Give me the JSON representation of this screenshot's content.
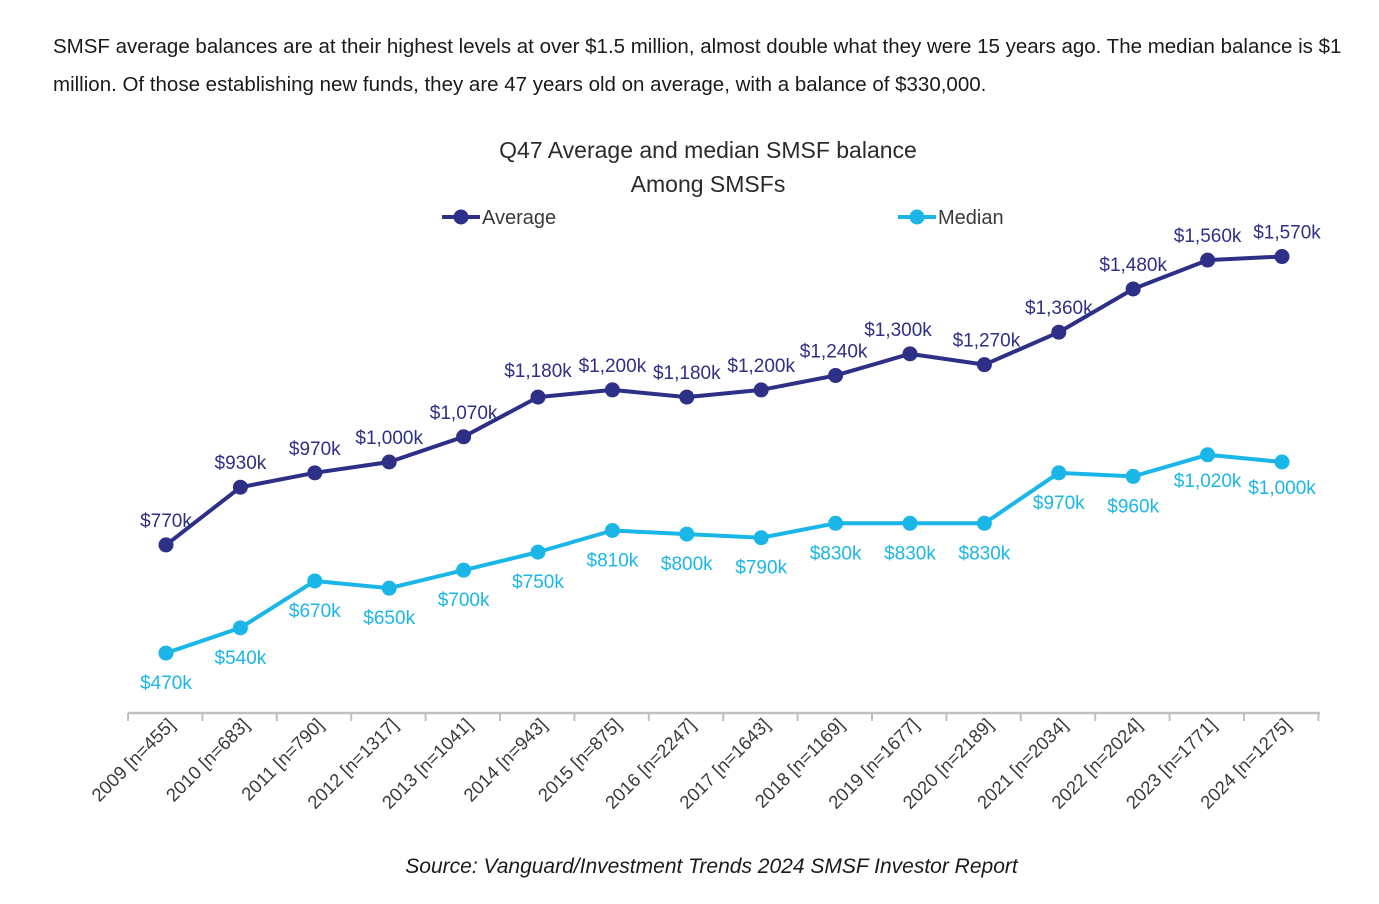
{
  "intro_text": "SMSF average balances are at their highest levels at over $1.5 million, almost double what they were 15 years ago. The median balance is $1 million. Of those establishing new funds, they are 47 years old on average, with a balance of $330,000.",
  "source": "Source: Vanguard/Investment Trends 2024 SMSF Investor Report",
  "colors": {
    "average": "#2e2f86",
    "median": "#1bb6e8",
    "axis": "#bfbfbf",
    "text": "#3a3a3a"
  },
  "chart_data": {
    "type": "line",
    "title": "Q47 Average and median SMSF balance",
    "subtitle": "Among SMSFs",
    "xlabel": "",
    "ylabel": "",
    "ylim": [
      300,
      1700
    ],
    "unit": "$k",
    "grid": false,
    "legend": "top",
    "categories": [
      "2009 [n=455]",
      "2010 [n=683]",
      "2011 [n=790]",
      "2012 [n=1317]",
      "2013 [n=1041]",
      "2014 [n=943]",
      "2015 [n=875]",
      "2016 [n=2247]",
      "2017 [n=1643]",
      "2018 [n=1169]",
      "2019 [n=1677]",
      "2020 [n=2189]",
      "2021 [n=2034]",
      "2022 [n=2024]",
      "2023 [n=1771]",
      "2024 [n=1275]"
    ],
    "series": [
      {
        "name": "Average",
        "values": [
          770,
          930,
          970,
          1000,
          1070,
          1180,
          1200,
          1180,
          1200,
          1240,
          1300,
          1270,
          1360,
          1480,
          1560,
          1570
        ],
        "labels": [
          "$770k",
          "$930k",
          "$970k",
          "$1,000k",
          "$1,070k",
          "$1,180k",
          "$1,200k",
          "$1,180k",
          "$1,200k",
          "$1,240k",
          "$1,300k",
          "$1,270k",
          "$1,360k",
          "$1,480k",
          "$1,560k",
          "$1,570k"
        ]
      },
      {
        "name": "Median",
        "values": [
          470,
          540,
          670,
          650,
          700,
          750,
          810,
          800,
          790,
          830,
          830,
          830,
          970,
          960,
          1020,
          1000
        ],
        "labels": [
          "$470k",
          "$540k",
          "$670k",
          "$650k",
          "$700k",
          "$750k",
          "$810k",
          "$800k",
          "$790k",
          "$830k",
          "$830k",
          "$830k",
          "$970k",
          "$960k",
          "$1,020k",
          "$1,000k"
        ]
      }
    ]
  }
}
